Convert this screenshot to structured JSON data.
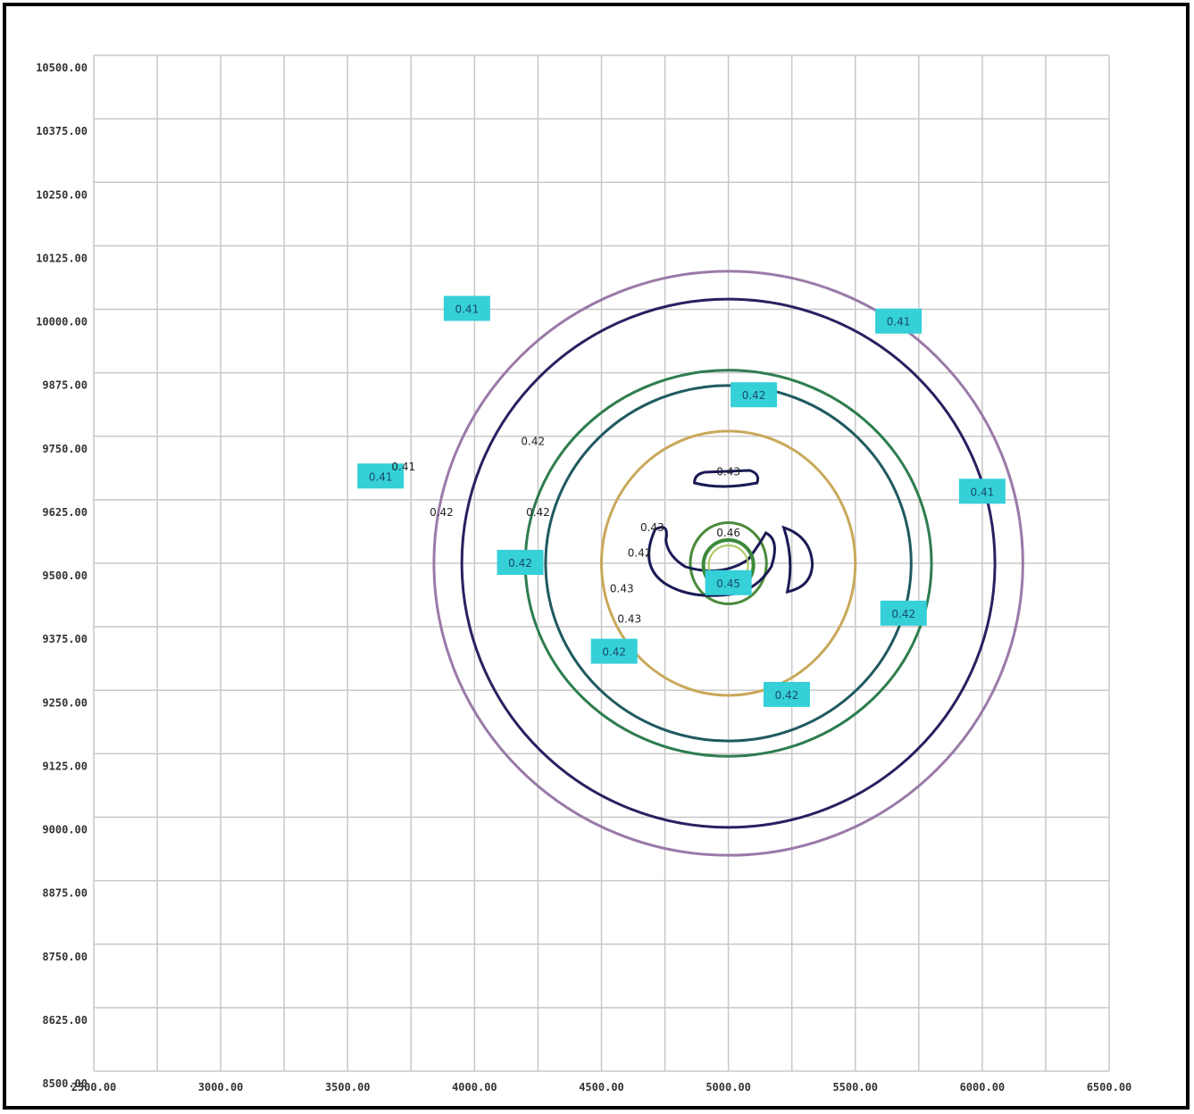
{
  "chart_data": {
    "type": "contour",
    "title": "",
    "xlabel": "",
    "ylabel": "",
    "xlim": [
      2500,
      6500
    ],
    "ylim": [
      8500,
      10500
    ],
    "grid": true,
    "x_ticks": [
      "2500.00",
      "3000.00",
      "3500.00",
      "4000.00",
      "4500.00",
      "5000.00",
      "5500.00",
      "6000.00",
      "6500.00"
    ],
    "y_ticks": [
      "10500.00",
      "10375.00",
      "10250.00",
      "10125.00",
      "10000.00",
      "9875.00",
      "9750.00",
      "9625.00",
      "9500.00",
      "9375.00",
      "9250.00",
      "9125.00",
      "9000.00",
      "8875.00",
      "8750.00",
      "8625.00",
      "8500.00"
    ],
    "center": {
      "x": 5000,
      "y": 9500
    },
    "contours": [
      {
        "label": "0.41",
        "color": "#9a7aa8",
        "radius_x": 1160,
        "radius_y": 575
      },
      {
        "label": "0.41",
        "color": "#2a2060",
        "radius_x": 1050,
        "radius_y": 520
      },
      {
        "label": "0.42",
        "color": "#2e7d4f",
        "radius_x": 800,
        "radius_y": 380
      },
      {
        "label": "0.42",
        "color": "#1f5a60",
        "radius_x": 720,
        "radius_y": 350
      },
      {
        "label": "0.43",
        "color": "#c9a85a",
        "radius_x": 500,
        "radius_y": 260
      },
      {
        "label": "0.46",
        "color": "#4a8a3a",
        "radius_x": 150,
        "radius_y": 80
      }
    ],
    "labels": [
      {
        "text": "0.41",
        "x": 3970,
        "y": 10000,
        "boxed": true
      },
      {
        "text": "0.41",
        "x": 5670,
        "y": 9975,
        "boxed": true
      },
      {
        "text": "0.41",
        "x": 3630,
        "y": 9670,
        "boxed": true
      },
      {
        "text": "0.41",
        "x": 3720,
        "y": 9690,
        "boxed": false
      },
      {
        "text": "0.41",
        "x": 6000,
        "y": 9640,
        "boxed": true
      },
      {
        "text": "0.42",
        "x": 5100,
        "y": 9830,
        "boxed": true
      },
      {
        "text": "0.42",
        "x": 4230,
        "y": 9740,
        "boxed": false
      },
      {
        "text": "0.42",
        "x": 3870,
        "y": 9600,
        "boxed": false
      },
      {
        "text": "0.42",
        "x": 4250,
        "y": 9600,
        "boxed": false
      },
      {
        "text": "0.42",
        "x": 4180,
        "y": 9500,
        "boxed": true
      },
      {
        "text": "0.42",
        "x": 5690,
        "y": 9400,
        "boxed": true
      },
      {
        "text": "0.42",
        "x": 4550,
        "y": 9325,
        "boxed": true
      },
      {
        "text": "0.42",
        "x": 5230,
        "y": 9240,
        "boxed": true
      },
      {
        "text": "0.43",
        "x": 5000,
        "y": 9680,
        "boxed": false
      },
      {
        "text": "0.43",
        "x": 4700,
        "y": 9570,
        "boxed": false
      },
      {
        "text": "0.42",
        "x": 4650,
        "y": 9520,
        "boxed": false
      },
      {
        "text": "0.43",
        "x": 4580,
        "y": 9450,
        "boxed": false
      },
      {
        "text": "0.43",
        "x": 4610,
        "y": 9390,
        "boxed": false
      },
      {
        "text": "0.46",
        "x": 5000,
        "y": 9560,
        "boxed": false
      },
      {
        "text": "0.45",
        "x": 5000,
        "y": 9460,
        "boxed": true
      }
    ]
  }
}
